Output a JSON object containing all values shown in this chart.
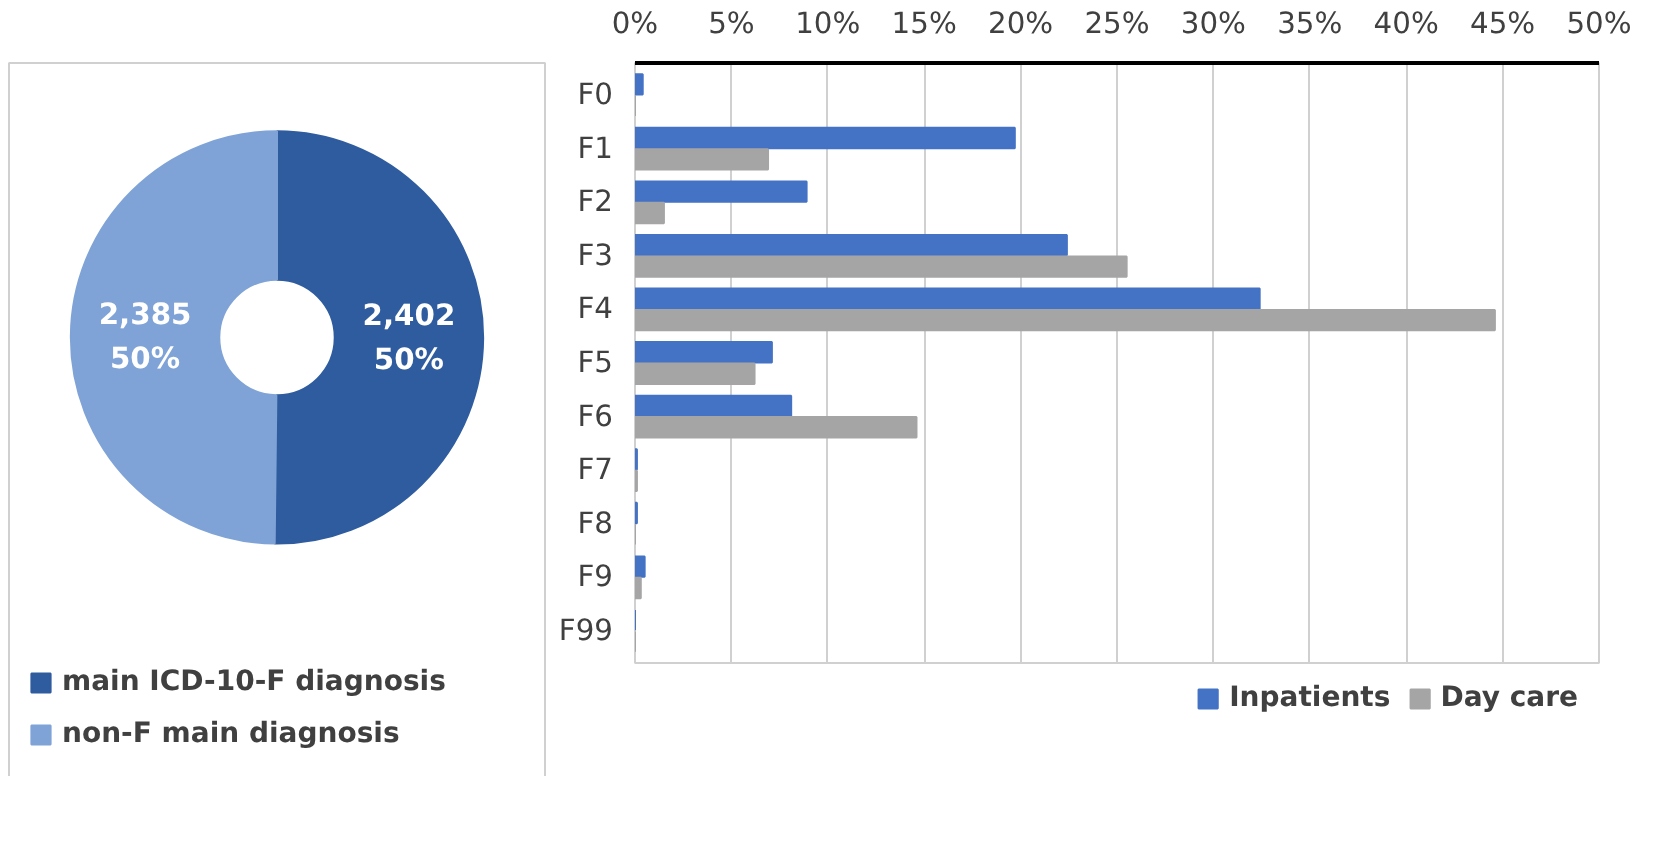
{
  "chart_data": [
    {
      "type": "donut",
      "categories": [
        "main ICD-10-F diagnosis",
        "non-F main diagnosis"
      ],
      "values": [
        2402,
        2385
      ],
      "colors": [
        "#2e5c9e",
        "#7fa3d6"
      ],
      "value_labels": [
        "2,402\n50%",
        "2,385\n50%"
      ],
      "legend": "bottom"
    },
    {
      "type": "bar",
      "orientation": "horizontal",
      "categories": [
        "F0",
        "F1",
        "F2",
        "F3",
        "F4",
        "F5",
        "F6",
        "F7",
        "F8",
        "F9",
        "F99"
      ],
      "series": [
        {
          "name": "Inpatients",
          "color": "#4472c4",
          "values": [
            0.4,
            19.7,
            8.9,
            22.4,
            32.4,
            7.1,
            8.1,
            0.1,
            0.1,
            0.5,
            0
          ]
        },
        {
          "name": "Day care",
          "color": "#a5a5a5",
          "values": [
            0,
            6.9,
            1.5,
            25.5,
            44.6,
            6.2,
            14.6,
            0.1,
            0,
            0.3,
            0
          ]
        }
      ],
      "xlim": [
        0,
        50
      ],
      "xticks": [
        {
          "value": 0,
          "label": "0%"
        },
        {
          "value": 5,
          "label": "5%"
        },
        {
          "value": 10,
          "label": "10%"
        },
        {
          "value": 15,
          "label": "15%"
        },
        {
          "value": 20,
          "label": "20%"
        },
        {
          "value": 25,
          "label": "25%"
        },
        {
          "value": 30,
          "label": "30%"
        },
        {
          "value": 35,
          "label": "35%"
        },
        {
          "value": 40,
          "label": "40%"
        },
        {
          "value": 45,
          "label": "45%"
        },
        {
          "value": 50,
          "label": "50%"
        }
      ],
      "grid": "x",
      "legend": "bottom"
    }
  ]
}
